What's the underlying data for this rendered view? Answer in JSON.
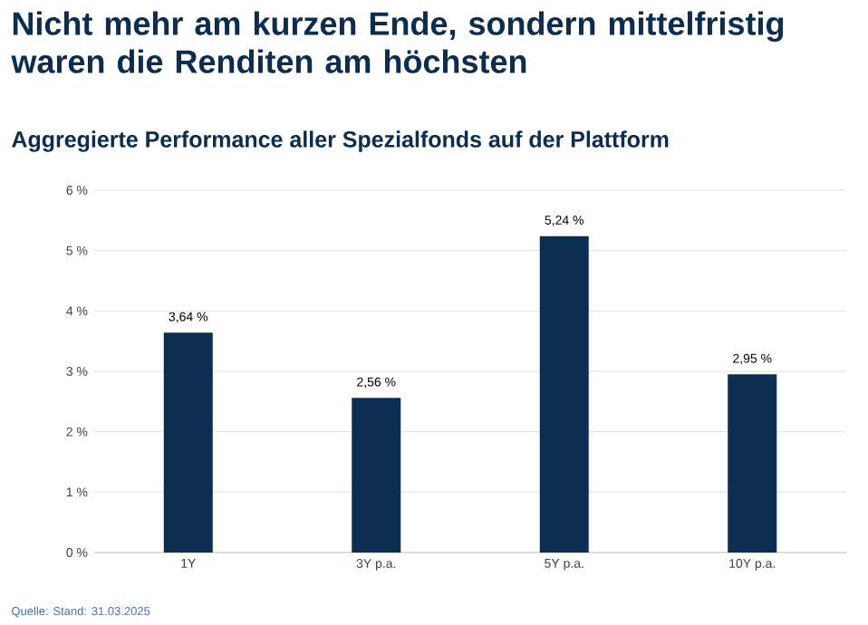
{
  "chart_data": {
    "type": "bar",
    "title": "Nicht mehr am kurzen Ende, sondern mittelfristig waren die Renditen am höchsten",
    "subtitle": "Aggregierte Performance aller Spezialfonds auf der Plattform",
    "categories": [
      "1Y",
      "3Y p.a.",
      "5Y p.a.",
      "10Y p.a."
    ],
    "values": [
      3.64,
      2.56,
      5.24,
      2.95
    ],
    "value_labels": [
      "3,64 %",
      "2,56 %",
      "5,24 %",
      "2,95 %"
    ],
    "color": "#0b2d4f",
    "ylim": [
      0,
      6
    ],
    "yticks": [
      {
        "value": 0,
        "label": "0 %"
      },
      {
        "value": 1,
        "label": "1 %"
      },
      {
        "value": 2,
        "label": "2 %"
      },
      {
        "value": 3,
        "label": "3 %"
      },
      {
        "value": 4,
        "label": "4 %"
      },
      {
        "value": 5,
        "label": "5 %"
      },
      {
        "value": 6,
        "label": "6 %"
      }
    ],
    "grid": "y",
    "annotations": [
      "Quelle: Stand: 31.03.2025"
    ]
  }
}
